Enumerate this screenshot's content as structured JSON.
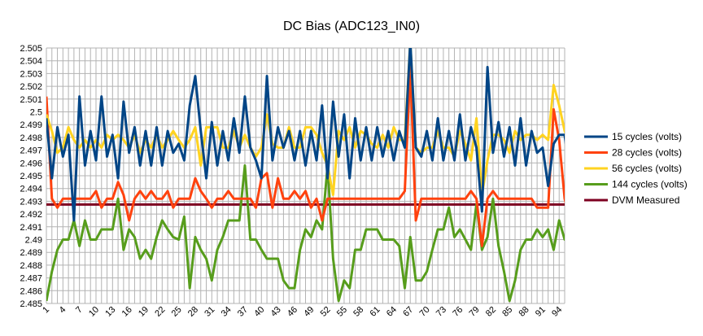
{
  "chart_data": {
    "type": "line",
    "title": "DC Bias (ADC123_IN0)",
    "xlabel": "",
    "ylabel": "",
    "ylim": [
      2.485,
      2.505
    ],
    "ytick_step": 0.001,
    "yticks": [
      "2.485",
      "2.486",
      "2.487",
      "2.488",
      "2.489",
      "2.49",
      "2.491",
      "2.492",
      "2.493",
      "2.494",
      "2.495",
      "2.496",
      "2.497",
      "2.498",
      "2.499",
      "2.5",
      "2.501",
      "2.502",
      "2.503",
      "2.504",
      "2.505"
    ],
    "xlim": [
      1,
      95
    ],
    "xticks": [
      "1",
      "4",
      "7",
      "10",
      "13",
      "16",
      "19",
      "22",
      "25",
      "28",
      "31",
      "34",
      "37",
      "40",
      "43",
      "46",
      "49",
      "52",
      "55",
      "58",
      "61",
      "64",
      "67",
      "70",
      "73",
      "76",
      "79",
      "82",
      "85",
      "88",
      "91",
      "94"
    ],
    "grid": true,
    "legend_position": "right",
    "series": [
      {
        "name": "15 cycles (volts)",
        "color": "#004586",
        "values": [
          2.4995,
          2.4948,
          2.4988,
          2.4965,
          2.4982,
          2.4915,
          2.5012,
          2.4958,
          2.4985,
          2.4962,
          2.5012,
          2.4965,
          2.4982,
          2.4948,
          2.5008,
          2.4968,
          2.4988,
          2.4958,
          2.4985,
          2.4958,
          2.4988,
          2.4958,
          2.4985,
          2.4968,
          2.4975,
          2.4962,
          2.5005,
          2.5028,
          2.4985,
          2.4948,
          2.4992,
          2.4958,
          2.4985,
          2.4962,
          2.4995,
          2.4968,
          2.5012,
          2.4972,
          2.4962,
          2.4948,
          2.5028,
          2.4962,
          2.4988,
          2.4972,
          2.4985,
          2.4962,
          2.4985,
          2.4958,
          2.4985,
          2.4962,
          2.5005,
          2.4948,
          2.5008,
          2.4965,
          2.4998,
          2.4948,
          2.4995,
          2.4962,
          2.4988,
          2.4962,
          2.4988,
          2.4965,
          2.4985,
          2.4962,
          2.4985,
          2.4972,
          2.5055,
          2.4972,
          2.4965,
          2.4985,
          2.4962,
          2.4995,
          2.4962,
          2.4985,
          2.4962,
          2.4998,
          2.4962,
          2.4988,
          2.4972,
          2.4922,
          2.5035,
          2.4968,
          2.4992,
          2.4965,
          2.4988,
          2.4958,
          2.4995,
          2.4958,
          2.4985,
          2.4968,
          2.4972,
          2.4942,
          2.4975,
          2.4982,
          2.4982,
          2.4948
        ]
      },
      {
        "name": "28 cycles (volts)",
        "color": "#ff420e",
        "values": [
          2.5012,
          2.4932,
          2.4925,
          2.4932,
          2.4932,
          2.4932,
          2.4932,
          2.4932,
          2.4932,
          2.4938,
          2.4925,
          2.4932,
          2.4932,
          2.4945,
          2.4935,
          2.4915,
          2.4932,
          2.4938,
          2.4932,
          2.4938,
          2.4932,
          2.4932,
          2.4938,
          2.4925,
          2.4932,
          2.4932,
          2.4932,
          2.4948,
          2.4938,
          2.4932,
          2.4925,
          2.4932,
          2.4932,
          2.4938,
          2.4932,
          2.4932,
          2.4932,
          2.4932,
          2.4925,
          2.4948,
          2.4952,
          2.4925,
          2.4948,
          2.4932,
          2.4932,
          2.4938,
          2.4932,
          2.4938,
          2.4925,
          2.4932,
          2.4915,
          2.4932,
          2.4932,
          2.4932,
          2.4932,
          2.4932,
          2.4932,
          2.4932,
          2.4932,
          2.4932,
          2.4932,
          2.4932,
          2.4932,
          2.4932,
          2.4932,
          2.4938,
          2.5035,
          2.4915,
          2.4932,
          2.4932,
          2.4932,
          2.4932,
          2.4932,
          2.4932,
          2.4932,
          2.4932,
          2.4932,
          2.4938,
          2.4932,
          2.4895,
          2.4932,
          2.4938,
          2.4932,
          2.4932,
          2.4932,
          2.4932,
          2.4932,
          2.4932,
          2.4932,
          2.4925,
          2.4925,
          2.4925,
          2.5002,
          2.4978,
          2.4932,
          2.4915
        ]
      },
      {
        "name": "56 cycles (volts)",
        "color": "#ffd320",
        "values": [
          2.4998,
          2.4985,
          2.4968,
          2.4972,
          2.4988,
          2.4978,
          2.4972,
          2.4978,
          2.4972,
          2.4978,
          2.4972,
          2.4982,
          2.4978,
          2.4982,
          2.4978,
          2.4972,
          2.4982,
          2.4968,
          2.4978,
          2.4972,
          2.4982,
          2.4972,
          2.4978,
          2.4985,
          2.4978,
          2.4972,
          2.4978,
          2.4988,
          2.4958,
          2.4988,
          2.4988,
          2.4988,
          2.4972,
          2.4972,
          2.4985,
          2.4972,
          2.4982,
          2.4972,
          2.4965,
          2.4972,
          2.4998,
          2.4975,
          2.4972,
          2.4972,
          2.4988,
          2.4972,
          2.4972,
          2.4988,
          2.4988,
          2.4982,
          2.4968,
          2.4958,
          2.4935,
          2.4985,
          2.4978,
          2.4988,
          2.4972,
          2.4985,
          2.4982,
          2.4975,
          2.4972,
          2.4982,
          2.4972,
          2.4988,
          2.4978,
          2.4978,
          2.5055,
          2.4972,
          2.4968,
          2.4972,
          2.4972,
          2.4985,
          2.4972,
          2.4972,
          2.4965,
          2.4985,
          2.4975,
          2.4962,
          2.4995,
          2.4935,
          2.4962,
          2.4982,
          2.4982,
          2.4978,
          2.4968,
          2.4985,
          2.4978,
          2.4982,
          2.4982,
          2.4978,
          2.4982,
          2.4978,
          2.5021,
          2.5005,
          2.4985,
          2.4975
        ]
      },
      {
        "name": "144 cycles (volts)",
        "color": "#579d1c",
        "values": [
          2.4852,
          2.4875,
          2.4892,
          2.49,
          2.49,
          2.4915,
          2.4895,
          2.4915,
          2.49,
          2.49,
          2.4908,
          2.4908,
          2.4908,
          2.4932,
          2.4892,
          2.4908,
          2.4902,
          2.4885,
          2.4892,
          2.4885,
          2.4902,
          2.4915,
          2.4908,
          2.4902,
          2.49,
          2.4918,
          2.4862,
          2.4902,
          2.4892,
          2.4885,
          2.4868,
          2.4892,
          2.4902,
          2.4915,
          2.4915,
          2.4915,
          2.4958,
          2.49,
          2.49,
          2.4892,
          2.4885,
          2.4885,
          2.4885,
          2.4868,
          2.4862,
          2.4862,
          2.4892,
          2.4908,
          2.4902,
          2.4915,
          2.4908,
          2.4958,
          2.4885,
          2.4852,
          2.4868,
          2.4862,
          2.4892,
          2.4892,
          2.4908,
          2.4908,
          2.4908,
          2.49,
          2.49,
          2.49,
          2.4895,
          2.4862,
          2.4902,
          2.4868,
          2.4868,
          2.4875,
          2.4892,
          2.4908,
          2.4908,
          2.4925,
          2.4902,
          2.4908,
          2.49,
          2.4892,
          2.4928,
          2.4892,
          2.4902,
          2.4932,
          2.4895,
          2.4875,
          2.4852,
          2.4868,
          2.4892,
          2.49,
          2.49,
          2.4908,
          2.4902,
          2.4908,
          2.4892,
          2.4915,
          2.49,
          2.49
        ]
      },
      {
        "name": "DVM Measured",
        "color": "#7e0021",
        "values": [
          2.49275,
          2.49275,
          2.49275,
          2.49275,
          2.49275,
          2.49275,
          2.49275,
          2.49275,
          2.49275,
          2.49275,
          2.49275,
          2.49275,
          2.49275,
          2.49275,
          2.49275,
          2.49275,
          2.49275,
          2.49275,
          2.49275,
          2.49275,
          2.49275,
          2.49275,
          2.49275,
          2.49275,
          2.49275,
          2.49275,
          2.49275,
          2.49275,
          2.49275,
          2.49275,
          2.49275,
          2.49275,
          2.49275,
          2.49275,
          2.49275,
          2.49275,
          2.49275,
          2.49275,
          2.49275,
          2.49275,
          2.49275,
          2.49275,
          2.49275,
          2.49275,
          2.49275,
          2.49275,
          2.49275,
          2.49275,
          2.49275,
          2.49275,
          2.49275,
          2.49275,
          2.49275,
          2.49275,
          2.49275,
          2.49275,
          2.49275,
          2.49275,
          2.49275,
          2.49275,
          2.49275,
          2.49275,
          2.49275,
          2.49275,
          2.49275,
          2.49275,
          2.49275,
          2.49275,
          2.49275,
          2.49275,
          2.49275,
          2.49275,
          2.49275,
          2.49275,
          2.49275,
          2.49275,
          2.49275,
          2.49275,
          2.49275,
          2.49275,
          2.49275,
          2.49275,
          2.49275,
          2.49275,
          2.49275,
          2.49275,
          2.49275,
          2.49275,
          2.49275,
          2.49275,
          2.49275,
          2.49275,
          2.49275,
          2.49275,
          2.49275,
          2.49275
        ]
      }
    ]
  }
}
